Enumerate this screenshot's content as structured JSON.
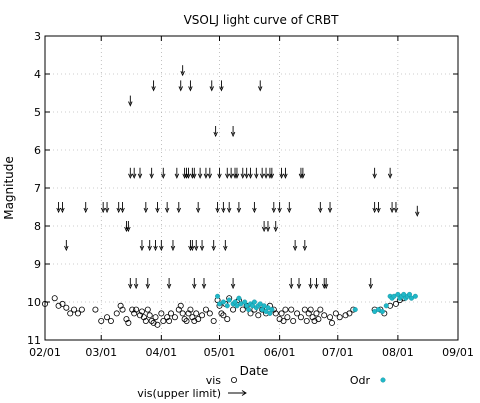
{
  "chart_data": {
    "type": "scatter",
    "title": "VSOLJ light curve of CRBT",
    "xlabel": "Date",
    "ylabel": "Magnitude",
    "x_is_date": true,
    "xlim": [
      "2016-02-01",
      "2016-09-01"
    ],
    "ylim": [
      11,
      3
    ],
    "y_inverted": true,
    "grid": true,
    "x_ticks": [
      {
        "date": "2016-02-01",
        "label": "02/01"
      },
      {
        "date": "2016-03-01",
        "label": "03/01"
      },
      {
        "date": "2016-04-01",
        "label": "04/01"
      },
      {
        "date": "2016-05-01",
        "label": "05/01"
      },
      {
        "date": "2016-06-01",
        "label": "06/01"
      },
      {
        "date": "2016-07-01",
        "label": "07/01"
      },
      {
        "date": "2016-08-01",
        "label": "08/01"
      },
      {
        "date": "2016-09-01",
        "label": "09/01"
      }
    ],
    "y_ticks": [
      3,
      4,
      5,
      6,
      7,
      8,
      9,
      10,
      11
    ],
    "legend": [
      {
        "series": "vis",
        "label": "vis",
        "marker": "circle-open",
        "color": "#000000"
      },
      {
        "series": "vis_upper",
        "label": "vis(upper limit)",
        "marker": "arrow-down",
        "color": "#000000"
      },
      {
        "series": "odr",
        "label": "Odr",
        "marker": "dot",
        "color": "#20b8c8"
      }
    ],
    "series": [
      {
        "id": "vis",
        "name": "vis",
        "points": [
          [
            "2016-02-01",
            10.05
          ],
          [
            "2016-02-06",
            9.9
          ],
          [
            "2016-02-08",
            10.1
          ],
          [
            "2016-02-10",
            10.05
          ],
          [
            "2016-02-12",
            10.15
          ],
          [
            "2016-02-14",
            10.3
          ],
          [
            "2016-02-16",
            10.2
          ],
          [
            "2016-02-18",
            10.3
          ],
          [
            "2016-02-20",
            10.2
          ],
          [
            "2016-02-27",
            10.2
          ],
          [
            "2016-03-01",
            10.5
          ],
          [
            "2016-03-04",
            10.4
          ],
          [
            "2016-03-06",
            10.5
          ],
          [
            "2016-03-09",
            10.3
          ],
          [
            "2016-03-11",
            10.1
          ],
          [
            "2016-03-12",
            10.2
          ],
          [
            "2016-03-14",
            10.45
          ],
          [
            "2016-03-15",
            10.55
          ],
          [
            "2016-03-17",
            10.2
          ],
          [
            "2016-03-18",
            10.3
          ],
          [
            "2016-03-19",
            10.2
          ],
          [
            "2016-03-21",
            10.35
          ],
          [
            "2016-03-22",
            10.25
          ],
          [
            "2016-03-23",
            10.4
          ],
          [
            "2016-03-24",
            10.5
          ],
          [
            "2016-03-25",
            10.2
          ],
          [
            "2016-03-26",
            10.35
          ],
          [
            "2016-03-27",
            10.5
          ],
          [
            "2016-03-28",
            10.55
          ],
          [
            "2016-03-29",
            10.4
          ],
          [
            "2016-03-30",
            10.6
          ],
          [
            "2016-04-01",
            10.3
          ],
          [
            "2016-04-02",
            10.5
          ],
          [
            "2016-04-04",
            10.4
          ],
          [
            "2016-04-05",
            10.5
          ],
          [
            "2016-04-06",
            10.3
          ],
          [
            "2016-04-08",
            10.4
          ],
          [
            "2016-04-10",
            10.2
          ],
          [
            "2016-04-11",
            10.1
          ],
          [
            "2016-04-12",
            10.3
          ],
          [
            "2016-04-13",
            10.45
          ],
          [
            "2016-04-14",
            10.5
          ],
          [
            "2016-04-15",
            10.3
          ],
          [
            "2016-04-16",
            10.2
          ],
          [
            "2016-04-17",
            10.4
          ],
          [
            "2016-04-18",
            10.5
          ],
          [
            "2016-04-19",
            10.3
          ],
          [
            "2016-04-20",
            10.45
          ],
          [
            "2016-04-22",
            10.35
          ],
          [
            "2016-04-24",
            10.2
          ],
          [
            "2016-04-26",
            10.3
          ],
          [
            "2016-04-28",
            10.5
          ],
          [
            "2016-04-30",
            9.95
          ],
          [
            "2016-05-01",
            10.1
          ],
          [
            "2016-05-02",
            10.3
          ],
          [
            "2016-05-03",
            10.35
          ],
          [
            "2016-05-04",
            10.05
          ],
          [
            "2016-05-05",
            10.45
          ],
          [
            "2016-05-06",
            9.9
          ],
          [
            "2016-05-08",
            10.2
          ],
          [
            "2016-05-10",
            10.0
          ],
          [
            "2016-05-11",
            9.95
          ],
          [
            "2016-05-13",
            10.2
          ],
          [
            "2016-05-15",
            10.1
          ],
          [
            "2016-05-17",
            10.3
          ],
          [
            "2016-05-19",
            10.2
          ],
          [
            "2016-05-21",
            10.35
          ],
          [
            "2016-05-23",
            10.2
          ],
          [
            "2016-05-25",
            10.3
          ],
          [
            "2016-05-27",
            10.1
          ],
          [
            "2016-05-29",
            10.2
          ],
          [
            "2016-05-30",
            10.3
          ],
          [
            "2016-06-01",
            10.45
          ],
          [
            "2016-06-02",
            10.3
          ],
          [
            "2016-06-03",
            10.5
          ],
          [
            "2016-06-04",
            10.2
          ],
          [
            "2016-06-05",
            10.4
          ],
          [
            "2016-06-07",
            10.2
          ],
          [
            "2016-06-08",
            10.5
          ],
          [
            "2016-06-10",
            10.3
          ],
          [
            "2016-06-12",
            10.4
          ],
          [
            "2016-06-14",
            10.2
          ],
          [
            "2016-06-15",
            10.5
          ],
          [
            "2016-06-16",
            10.3
          ],
          [
            "2016-06-17",
            10.2
          ],
          [
            "2016-06-18",
            10.4
          ],
          [
            "2016-06-19",
            10.5
          ],
          [
            "2016-06-20",
            10.3
          ],
          [
            "2016-06-21",
            10.45
          ],
          [
            "2016-06-22",
            10.2
          ],
          [
            "2016-06-24",
            10.35
          ],
          [
            "2016-06-27",
            10.4
          ],
          [
            "2016-06-28",
            10.55
          ],
          [
            "2016-06-30",
            10.3
          ],
          [
            "2016-07-02",
            10.4
          ],
          [
            "2016-07-05",
            10.35
          ],
          [
            "2016-07-07",
            10.3
          ],
          [
            "2016-07-09",
            10.2
          ],
          [
            "2016-07-20",
            10.2
          ],
          [
            "2016-07-23",
            10.2
          ],
          [
            "2016-07-25",
            10.3
          ],
          [
            "2016-07-28",
            10.1
          ],
          [
            "2016-07-31",
            10.05
          ],
          [
            "2016-08-02",
            9.95
          ],
          [
            "2016-08-04",
            9.9
          ]
        ]
      },
      {
        "id": "vis_upper",
        "name": "vis(upper limit)",
        "points": [
          [
            "2016-02-08",
            7.5
          ],
          [
            "2016-02-10",
            7.5
          ],
          [
            "2016-02-12",
            8.5
          ],
          [
            "2016-02-22",
            7.5
          ],
          [
            "2016-03-02",
            7.5
          ],
          [
            "2016-03-04",
            7.5
          ],
          [
            "2016-03-10",
            7.5
          ],
          [
            "2016-03-12",
            7.5
          ],
          [
            "2016-03-14",
            8.0
          ],
          [
            "2016-03-15",
            8.0
          ],
          [
            "2016-03-16",
            4.7
          ],
          [
            "2016-03-16",
            6.6
          ],
          [
            "2016-03-18",
            6.6
          ],
          [
            "2016-03-16",
            9.5
          ],
          [
            "2016-03-19",
            9.5
          ],
          [
            "2016-03-21",
            6.6
          ],
          [
            "2016-03-22",
            8.5
          ],
          [
            "2016-03-24",
            7.5
          ],
          [
            "2016-03-25",
            9.5
          ],
          [
            "2016-03-26",
            8.5
          ],
          [
            "2016-03-27",
            6.6
          ],
          [
            "2016-03-28",
            4.3
          ],
          [
            "2016-03-29",
            8.5
          ],
          [
            "2016-03-30",
            7.5
          ],
          [
            "2016-04-01",
            8.5
          ],
          [
            "2016-04-02",
            6.6
          ],
          [
            "2016-04-04",
            7.5
          ],
          [
            "2016-04-05",
            9.5
          ],
          [
            "2016-04-07",
            8.5
          ],
          [
            "2016-04-09",
            6.6
          ],
          [
            "2016-04-10",
            7.5
          ],
          [
            "2016-04-11",
            4.3
          ],
          [
            "2016-04-12",
            3.9
          ],
          [
            "2016-04-13",
            6.6
          ],
          [
            "2016-04-14",
            6.6
          ],
          [
            "2016-04-15",
            6.6
          ],
          [
            "2016-04-16",
            4.3
          ],
          [
            "2016-04-16",
            8.5
          ],
          [
            "2016-04-17",
            6.6
          ],
          [
            "2016-04-17",
            8.5
          ],
          [
            "2016-04-18",
            9.5
          ],
          [
            "2016-04-18",
            6.6
          ],
          [
            "2016-04-19",
            8.5
          ],
          [
            "2016-04-20",
            7.5
          ],
          [
            "2016-04-21",
            6.6
          ],
          [
            "2016-04-22",
            8.5
          ],
          [
            "2016-04-23",
            9.5
          ],
          [
            "2016-04-24",
            6.6
          ],
          [
            "2016-04-26",
            6.6
          ],
          [
            "2016-04-27",
            4.3
          ],
          [
            "2016-04-28",
            8.5
          ],
          [
            "2016-04-29",
            5.5
          ],
          [
            "2016-04-30",
            7.5
          ],
          [
            "2016-05-01",
            6.6
          ],
          [
            "2016-05-02",
            4.3
          ],
          [
            "2016-05-03",
            7.5
          ],
          [
            "2016-05-04",
            8.5
          ],
          [
            "2016-05-05",
            6.6
          ],
          [
            "2016-05-06",
            7.5
          ],
          [
            "2016-05-07",
            6.6
          ],
          [
            "2016-05-08",
            5.5
          ],
          [
            "2016-05-08",
            9.5
          ],
          [
            "2016-05-09",
            6.6
          ],
          [
            "2016-05-10",
            6.6
          ],
          [
            "2016-05-11",
            7.5
          ],
          [
            "2016-05-13",
            6.6
          ],
          [
            "2016-05-15",
            6.6
          ],
          [
            "2016-05-17",
            6.6
          ],
          [
            "2016-05-19",
            7.5
          ],
          [
            "2016-05-20",
            6.6
          ],
          [
            "2016-05-22",
            4.3
          ],
          [
            "2016-05-23",
            6.6
          ],
          [
            "2016-05-24",
            8.0
          ],
          [
            "2016-05-25",
            6.6
          ],
          [
            "2016-05-26",
            8.0
          ],
          [
            "2016-05-27",
            6.6
          ],
          [
            "2016-05-28",
            6.6
          ],
          [
            "2016-05-29",
            7.5
          ],
          [
            "2016-05-30",
            8.0
          ],
          [
            "2016-06-01",
            7.5
          ],
          [
            "2016-06-02",
            6.6
          ],
          [
            "2016-06-04",
            6.6
          ],
          [
            "2016-06-06",
            7.5
          ],
          [
            "2016-06-07",
            9.5
          ],
          [
            "2016-06-09",
            8.5
          ],
          [
            "2016-06-11",
            9.5
          ],
          [
            "2016-06-12",
            6.6
          ],
          [
            "2016-06-13",
            6.6
          ],
          [
            "2016-06-14",
            8.5
          ],
          [
            "2016-06-17",
            9.5
          ],
          [
            "2016-06-20",
            9.5
          ],
          [
            "2016-06-22",
            7.5
          ],
          [
            "2016-06-24",
            9.5
          ],
          [
            "2016-06-25",
            9.5
          ],
          [
            "2016-06-27",
            7.5
          ],
          [
            "2016-07-18",
            9.5
          ],
          [
            "2016-07-20",
            7.5
          ],
          [
            "2016-07-20",
            6.6
          ],
          [
            "2016-07-22",
            7.5
          ],
          [
            "2016-07-28",
            6.6
          ],
          [
            "2016-07-29",
            7.5
          ],
          [
            "2016-07-31",
            7.5
          ],
          [
            "2016-08-11",
            7.6
          ]
        ]
      },
      {
        "id": "odr",
        "name": "Odr",
        "points": [
          [
            "2016-04-30",
            9.85
          ],
          [
            "2016-05-01",
            10.05
          ],
          [
            "2016-05-03",
            10.0
          ],
          [
            "2016-05-05",
            10.1
          ],
          [
            "2016-05-06",
            9.95
          ],
          [
            "2016-05-08",
            10.05
          ],
          [
            "2016-05-09",
            10.0
          ],
          [
            "2016-05-10",
            10.1
          ],
          [
            "2016-05-11",
            9.9
          ],
          [
            "2016-05-12",
            10.05
          ],
          [
            "2016-05-14",
            10.0
          ],
          [
            "2016-05-15",
            10.1
          ],
          [
            "2016-05-16",
            10.2
          ],
          [
            "2016-05-17",
            10.05
          ],
          [
            "2016-05-18",
            10.1
          ],
          [
            "2016-05-19",
            10.0
          ],
          [
            "2016-05-20",
            10.15
          ],
          [
            "2016-05-21",
            10.1
          ],
          [
            "2016-05-22",
            10.05
          ],
          [
            "2016-05-23",
            10.2
          ],
          [
            "2016-05-24",
            10.1
          ],
          [
            "2016-05-25",
            10.25
          ],
          [
            "2016-05-26",
            10.15
          ],
          [
            "2016-05-27",
            10.3
          ],
          [
            "2016-05-28",
            10.2
          ],
          [
            "2016-07-10",
            10.2
          ],
          [
            "2016-07-20",
            10.25
          ],
          [
            "2016-07-22",
            10.2
          ],
          [
            "2016-07-24",
            10.25
          ],
          [
            "2016-07-26",
            10.1
          ],
          [
            "2016-07-28",
            9.85
          ],
          [
            "2016-07-29",
            9.9
          ],
          [
            "2016-07-30",
            9.85
          ],
          [
            "2016-08-01",
            9.8
          ],
          [
            "2016-08-02",
            9.9
          ],
          [
            "2016-08-03",
            9.85
          ],
          [
            "2016-08-04",
            9.8
          ],
          [
            "2016-08-05",
            9.9
          ],
          [
            "2016-08-06",
            9.85
          ],
          [
            "2016-08-07",
            9.8
          ],
          [
            "2016-08-08",
            9.9
          ],
          [
            "2016-08-10",
            9.85
          ]
        ]
      }
    ]
  }
}
